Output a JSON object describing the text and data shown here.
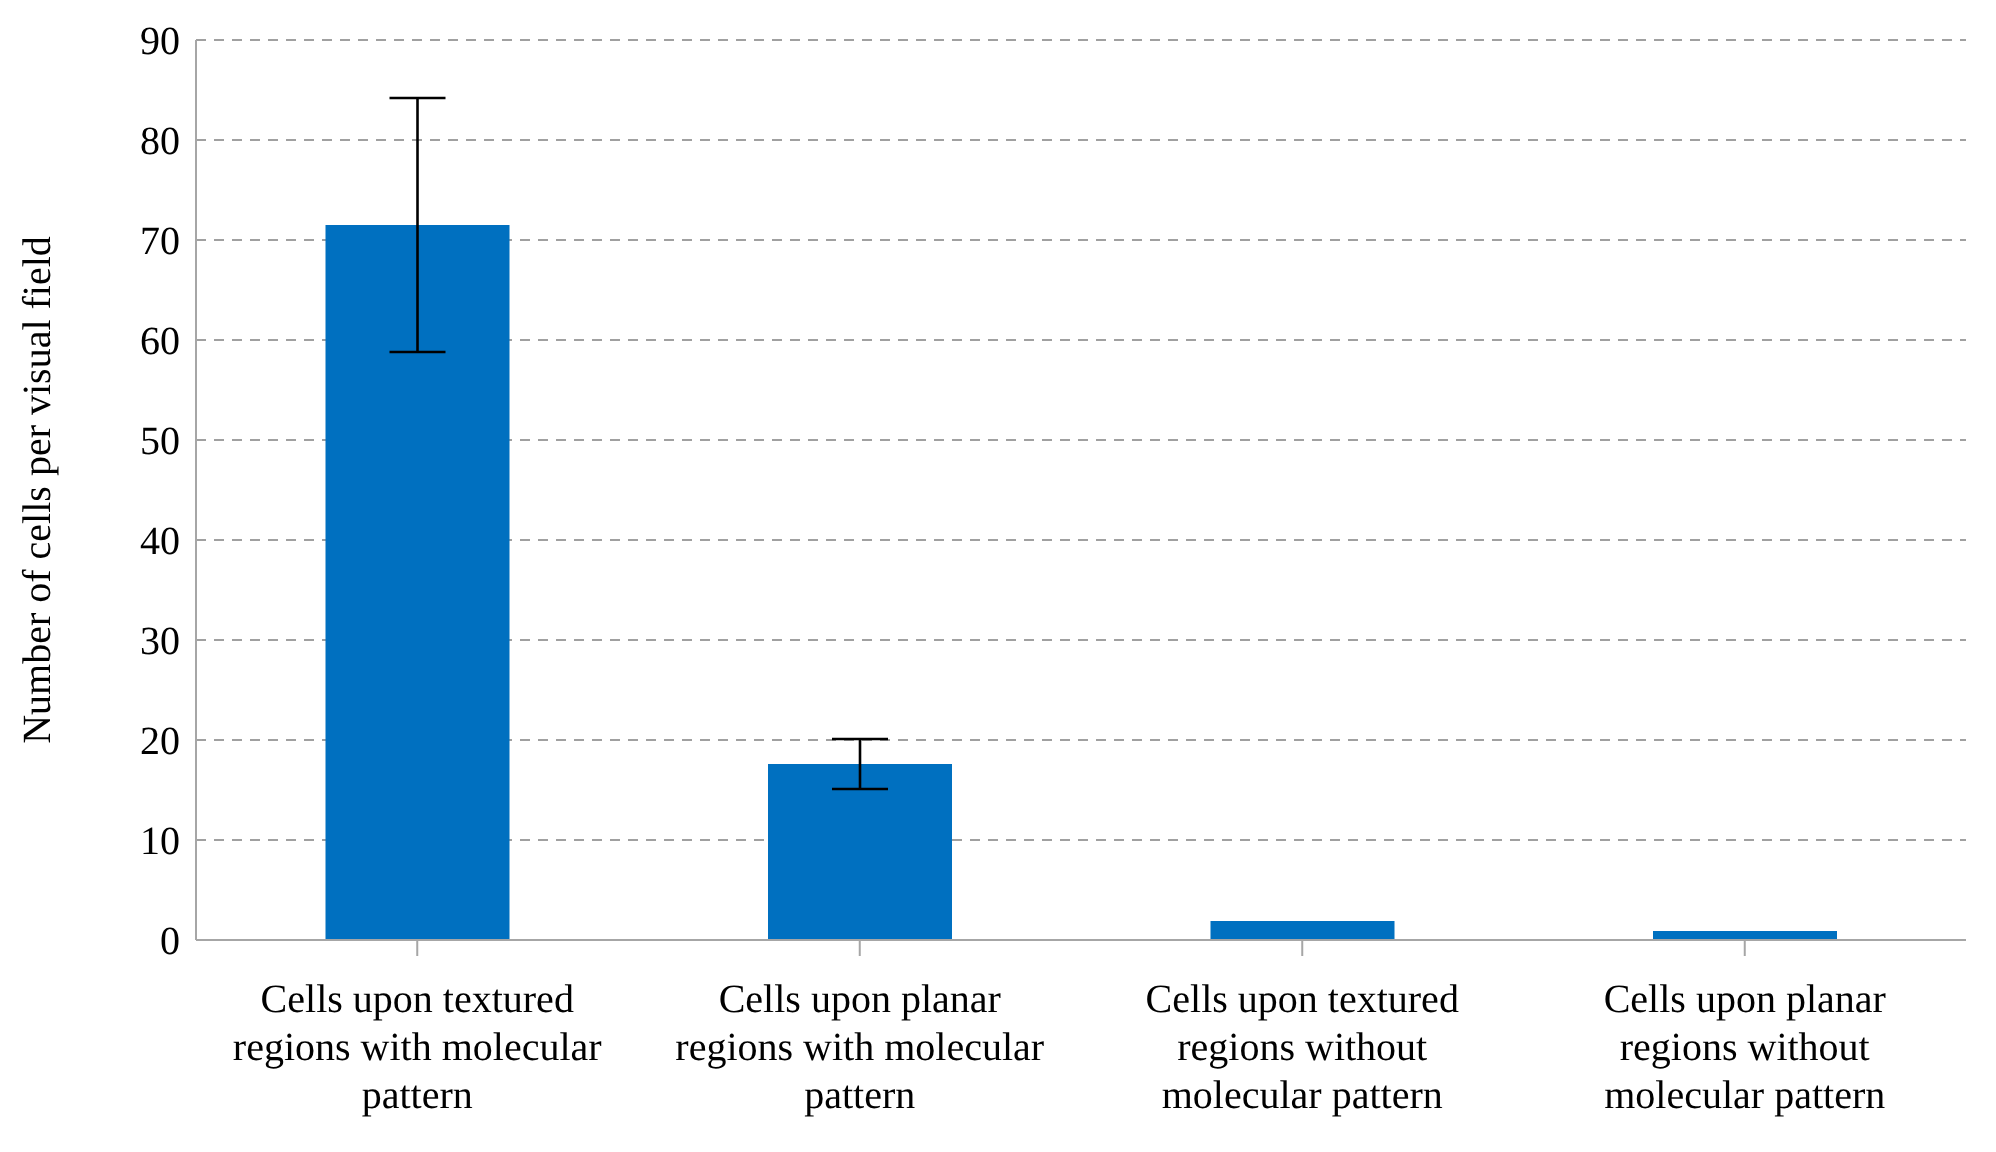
{
  "chart_data": {
    "type": "bar",
    "ylabel": "Number of cells per visual field",
    "categories": [
      "Cells upon textured regions with molecular pattern",
      "Cells upon planar regions with molecular pattern",
      "Cells upon textured regions without molecular pattern",
      "Cells upon planar regions without molecular pattern"
    ],
    "values": [
      71.5,
      17.6,
      1.9,
      0.9
    ],
    "errors": [
      12.7,
      2.5,
      null,
      null
    ],
    "color": "#0070c0",
    "ylim": [
      0,
      90
    ],
    "yticks": [
      0,
      10,
      20,
      30,
      40,
      50,
      60,
      70,
      80,
      90
    ],
    "grid": "y"
  }
}
